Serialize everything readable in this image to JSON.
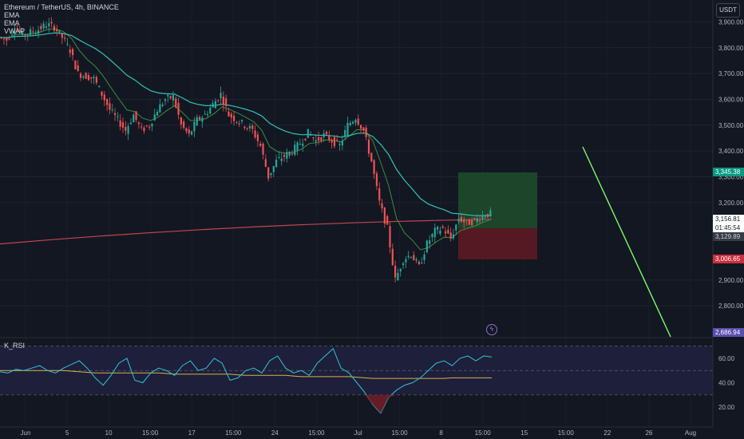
{
  "legend": {
    "symbol": "Ethereum / TetherUS, 4h, BINANCE",
    "indicators": [
      "EMA",
      "EMA",
      "VWAP"
    ]
  },
  "currency_button": "USDT",
  "rsi_label": "K_RSI",
  "price_tags": {
    "target": "3,345.38",
    "current": "3,156.81",
    "countdown": "01:45:54",
    "ref": "3,129.89",
    "stop": "3,006.65",
    "alert": "2,686.94"
  },
  "colors": {
    "background": "#131722",
    "up": "#26a69a",
    "down": "#ef5350",
    "ema_teal": "#2ec4b6",
    "ema_red": "#c0474f",
    "vwap": "#3d8c40",
    "rsi_line": "#2ec4d6",
    "rsi_ma": "#d4b44a",
    "target_zone": "#1e4d2b",
    "stop_zone": "#5c1a22",
    "trend_line": "#7cfc6a"
  },
  "chart_data": {
    "type": "candlestick",
    "price_axis": {
      "ticks": [
        "3,900.00",
        "3,800.00",
        "3,700.00",
        "3,600.00",
        "3,500.00",
        "3,400.00",
        "3,300.00",
        "3,200.00",
        "2,900.00",
        "2,800.00"
      ],
      "range": [
        2680,
        3960
      ]
    },
    "time_axis": {
      "ticks": [
        "Jun",
        "5",
        "10",
        "15:00",
        "17",
        "15:00",
        "24",
        "15:00",
        "Jul",
        "15:00",
        "8",
        "15:00",
        "15",
        "15:00",
        "22",
        "26",
        "Aug"
      ]
    },
    "rsi_axis": {
      "ticks": [
        "60.00",
        "40.00",
        "20.00"
      ],
      "range": [
        5,
        75
      ],
      "bands": [
        70,
        50,
        30
      ]
    },
    "price_path": [
      3840,
      3830,
      3880,
      3850,
      3860,
      3870,
      3890,
      3880,
      3840,
      3790,
      3700,
      3690,
      3680,
      3620,
      3560,
      3520,
      3480,
      3540,
      3480,
      3500,
      3560,
      3600,
      3610,
      3500,
      3460,
      3520,
      3540,
      3580,
      3620,
      3540,
      3520,
      3500,
      3480,
      3420,
      3300,
      3360,
      3380,
      3400,
      3430,
      3470,
      3440,
      3460,
      3440,
      3420,
      3500,
      3530,
      3480,
      3360,
      3200,
      3100,
      2900,
      2980,
      3000,
      2950,
      3040,
      3090,
      3100,
      3060,
      3140,
      3120,
      3130,
      3150,
      3157
    ],
    "rsi_path": [
      49,
      48,
      51,
      50,
      52,
      54,
      50,
      48,
      52,
      55,
      58,
      52,
      44,
      38,
      46,
      56,
      60,
      42,
      40,
      48,
      52,
      50,
      46,
      54,
      58,
      50,
      52,
      60,
      56,
      42,
      44,
      50,
      52,
      48,
      58,
      62,
      52,
      48,
      50,
      46,
      56,
      62,
      68,
      52,
      48,
      40,
      32,
      22,
      15,
      28,
      34,
      38,
      40,
      44,
      50,
      56,
      58,
      54,
      60,
      62,
      58,
      62,
      61
    ],
    "rsi_ma_path": [
      50,
      50,
      50,
      50,
      50,
      50,
      50,
      50,
      50,
      49.5,
      49,
      48.5,
      48,
      48,
      48,
      48,
      48,
      48,
      48,
      48,
      48,
      47.5,
      47,
      47,
      47,
      47,
      47,
      47,
      47,
      47,
      46.5,
      46,
      46,
      46,
      46,
      46,
      46,
      45.5,
      45,
      45,
      45,
      45,
      45,
      45,
      45,
      44.5,
      44,
      43.5,
      43.5,
      43.5,
      43.5,
      43.5,
      43.5,
      43.5,
      43.5,
      43.5,
      43.5,
      44,
      44,
      44,
      44,
      44,
      44
    ]
  }
}
